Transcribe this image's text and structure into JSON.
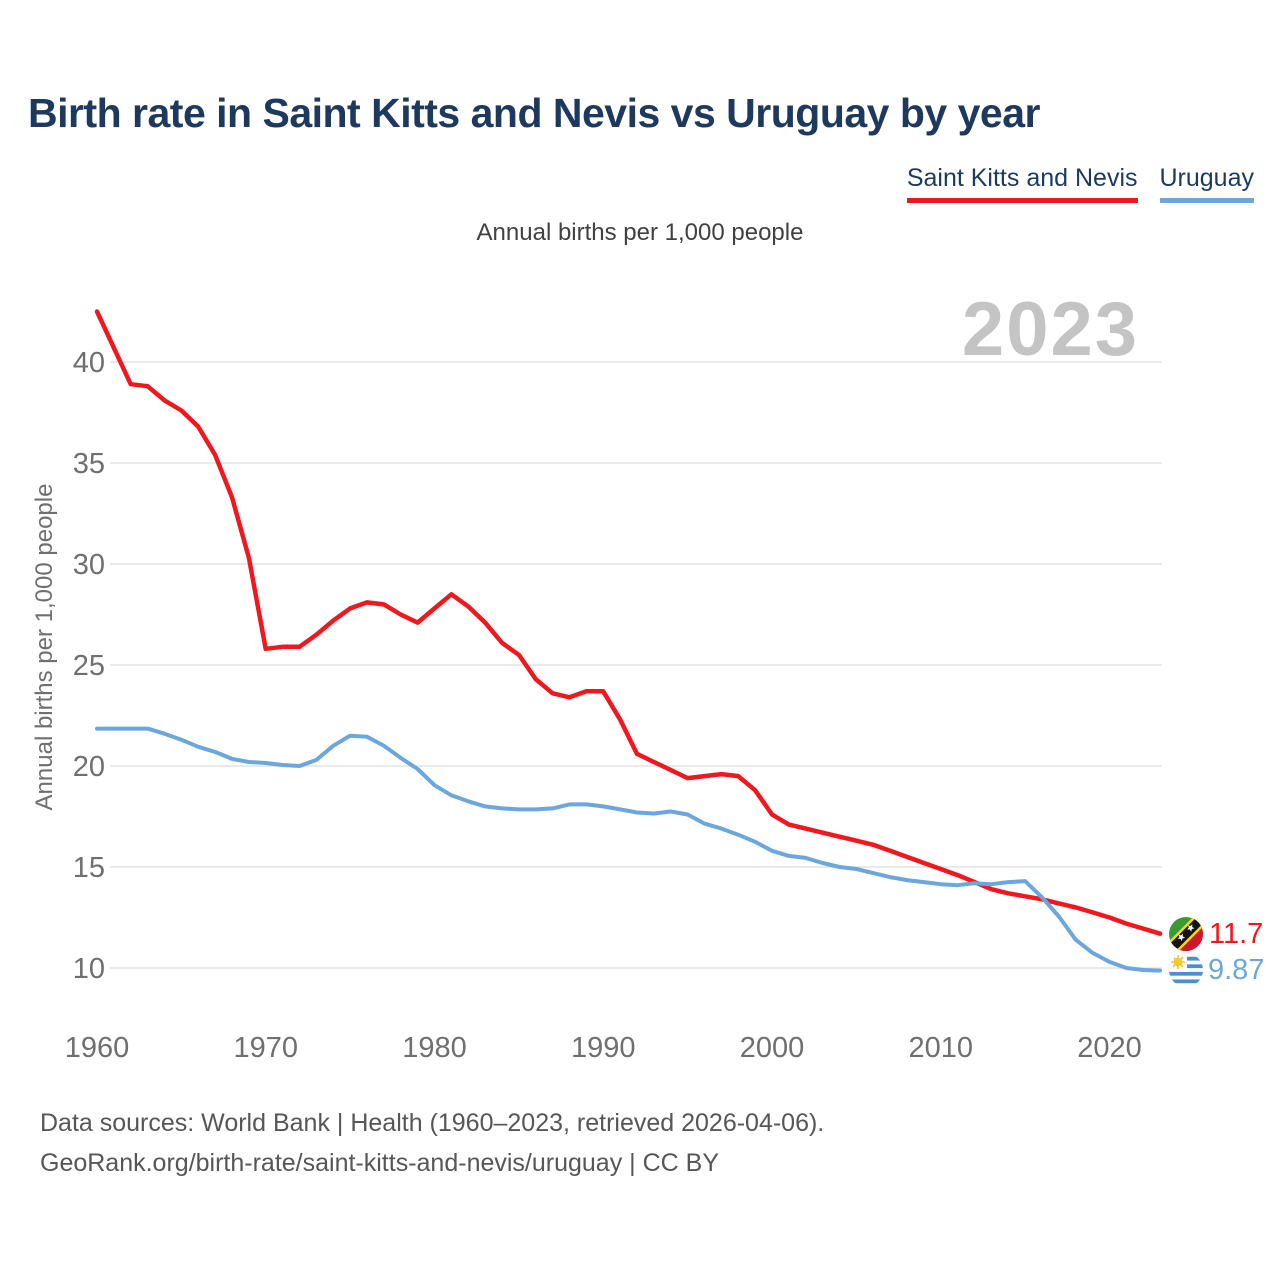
{
  "page": {
    "title": "Birth rate in Saint Kitts and Nevis vs Uruguay by year",
    "subtitle": "Annual births per 1,000 people",
    "watermark": "2023",
    "footer_line1": "Data sources: World Bank | Health (1960–2023, retrieved 2026-04-06).",
    "footer_line2": "GeoRank.org/birth-rate/saint-kitts-and-nevis/uruguay | CC BY"
  },
  "legend": [
    {
      "label": "Saint Kitts and Nevis",
      "color": "#f0181f"
    },
    {
      "label": "Uruguay",
      "color": "#6ba7dd"
    }
  ],
  "end_labels": [
    {
      "value": "11.7",
      "color": "#f0181f",
      "flag": "saint-kitts-and-nevis-flag"
    },
    {
      "value": "9.87",
      "color": "#6ba7dd",
      "flag": "uruguay-flag"
    }
  ],
  "colors": {
    "title_navy": "#1d3a5e",
    "red_series": "#f0181f",
    "blue_series": "#6ba7dd",
    "gridline": "#e4e4e4",
    "tick_text": "#6f6f6f",
    "watermark_gray": "#c4c4c4"
  },
  "chart_data": {
    "type": "line",
    "title": "Birth rate in Saint Kitts and Nevis vs Uruguay by year",
    "subtitle": "Annual births per 1,000 people",
    "xlabel": "",
    "ylabel": "Annual births per 1,000 people",
    "grid": "horizontal",
    "legend_position": "top-right",
    "xlim": [
      1960,
      2023
    ],
    "ylim": [
      8.5,
      43.5
    ],
    "x_ticks": [
      1960,
      1970,
      1980,
      1990,
      2000,
      2010,
      2020
    ],
    "y_ticks": [
      10,
      15,
      20,
      25,
      30,
      35,
      40
    ],
    "x": [
      1960,
      1961,
      1962,
      1963,
      1964,
      1965,
      1966,
      1967,
      1968,
      1969,
      1970,
      1971,
      1972,
      1973,
      1974,
      1975,
      1976,
      1977,
      1978,
      1979,
      1980,
      1981,
      1982,
      1983,
      1984,
      1985,
      1986,
      1987,
      1988,
      1989,
      1990,
      1991,
      1992,
      1993,
      1994,
      1995,
      1996,
      1997,
      1998,
      1999,
      2000,
      2001,
      2002,
      2003,
      2004,
      2005,
      2006,
      2007,
      2008,
      2009,
      2010,
      2011,
      2012,
      2013,
      2014,
      2015,
      2016,
      2017,
      2018,
      2019,
      2020,
      2021,
      2022,
      2023
    ],
    "series": [
      {
        "name": "Saint Kitts and Nevis",
        "color": "#f0181f",
        "stroke_width": 4.5,
        "last_value_label": "11.7",
        "values": [
          42.5,
          40.7,
          38.9,
          38.8,
          38.1,
          37.6,
          36.8,
          35.4,
          33.3,
          30.3,
          25.8,
          25.9,
          25.9,
          26.5,
          27.2,
          27.8,
          28.1,
          28.0,
          27.5,
          27.1,
          27.8,
          28.5,
          27.9,
          27.1,
          26.1,
          25.5,
          24.3,
          23.6,
          23.4,
          23.7,
          23.7,
          22.3,
          20.6,
          20.2,
          19.8,
          19.4,
          19.5,
          19.6,
          19.5,
          18.8,
          17.6,
          17.1,
          16.9,
          16.7,
          16.5,
          16.3,
          16.1,
          15.8,
          15.5,
          15.2,
          14.9,
          14.6,
          14.25,
          13.9,
          13.7,
          13.55,
          13.4,
          13.2,
          13.0,
          12.75,
          12.5,
          12.2,
          11.95,
          11.7
        ]
      },
      {
        "name": "Uruguay",
        "color": "#6ba7dd",
        "stroke_width": 4,
        "last_value_label": "9.87",
        "values": [
          21.85,
          21.85,
          21.85,
          21.85,
          21.6,
          21.3,
          20.95,
          20.7,
          20.35,
          20.2,
          20.15,
          20.05,
          20.0,
          20.3,
          21.0,
          21.5,
          21.45,
          21.0,
          20.4,
          19.85,
          19.05,
          18.55,
          18.25,
          18.0,
          17.9,
          17.85,
          17.85,
          17.9,
          18.1,
          18.1,
          18.0,
          17.85,
          17.7,
          17.65,
          17.75,
          17.6,
          17.15,
          16.9,
          16.6,
          16.25,
          15.8,
          15.55,
          15.45,
          15.2,
          15.0,
          14.9,
          14.7,
          14.5,
          14.35,
          14.25,
          14.15,
          14.1,
          14.2,
          14.15,
          14.25,
          14.3,
          13.5,
          12.55,
          11.4,
          10.75,
          10.3,
          10.0,
          9.9,
          9.87
        ]
      }
    ]
  }
}
